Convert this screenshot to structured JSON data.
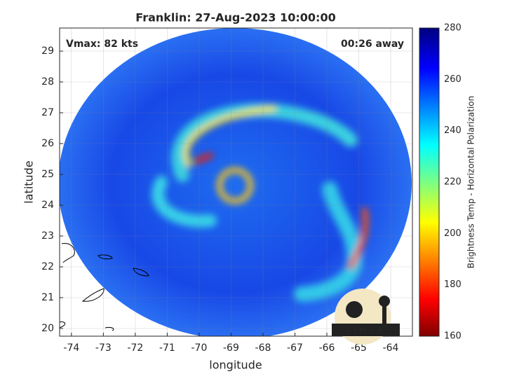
{
  "chart_data": {
    "type": "image-map",
    "title": "Franklin: 27-Aug-2023 10:00:00",
    "annotations": [
      "Vmax: 82 kts",
      "00:26 away"
    ],
    "x_label": "longitude",
    "y_label": "latitude",
    "xlim": [
      -74.37,
      -63.32
    ],
    "ylim": [
      19.75,
      29.75
    ],
    "xticks": [
      -74,
      -73,
      -72,
      -71,
      -70,
      -69,
      -68,
      -67,
      -66,
      -65,
      -64
    ],
    "yticks": [
      20,
      21,
      22,
      23,
      24,
      25,
      26,
      27,
      28,
      29
    ],
    "grid": true,
    "colorbar": {
      "label": "Brightness Temp - Horizontal Polarization",
      "lim": [
        160,
        280
      ],
      "ticks": [
        160,
        180,
        200,
        220,
        240,
        260,
        280
      ]
    },
    "logo": "CIMSS"
  }
}
